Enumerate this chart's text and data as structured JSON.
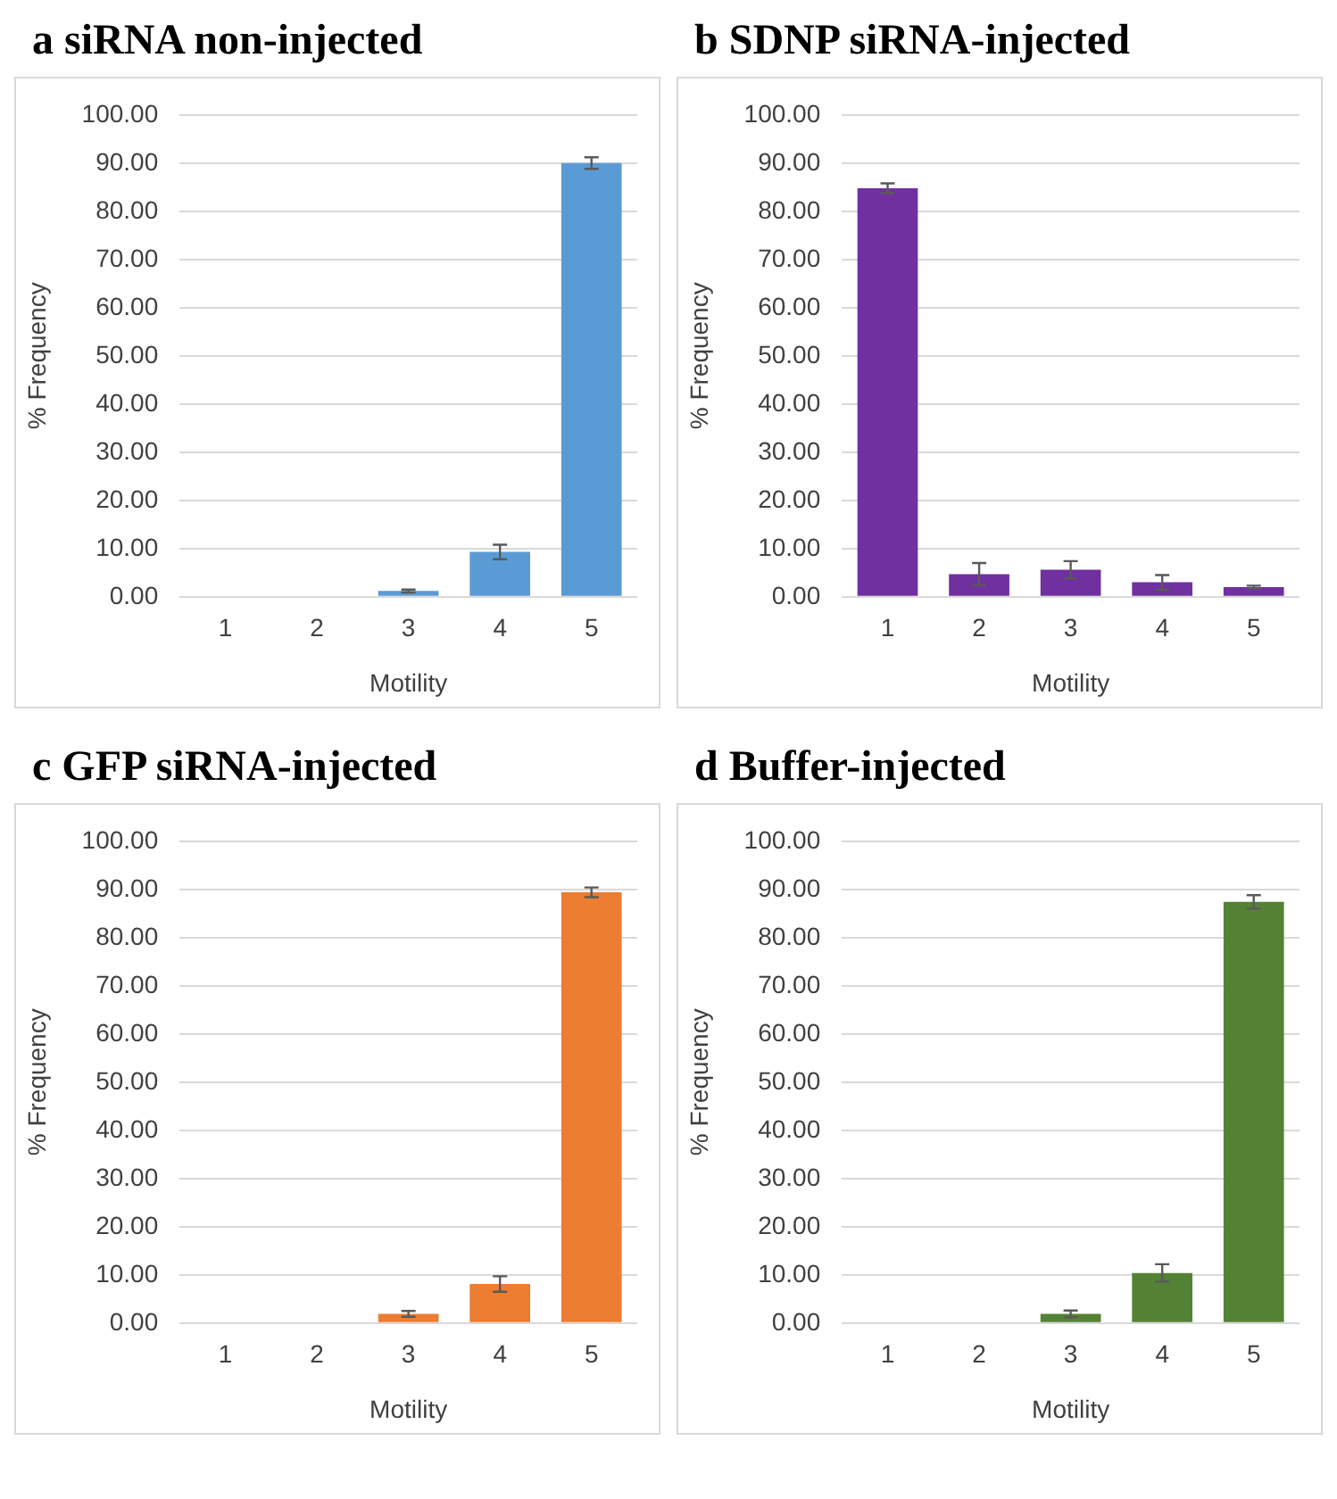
{
  "chart_data": [
    {
      "type": "bar",
      "title": "a siRNA non-injected",
      "xlabel": "Motility",
      "ylabel": "% Frequency",
      "categories": [
        "1",
        "2",
        "3",
        "4",
        "5"
      ],
      "values": [
        0,
        0,
        1.2,
        9.3,
        90.0
      ],
      "errors": [
        null,
        null,
        0.3,
        1.5,
        1.2
      ],
      "color": "#5b9bd5",
      "ylim": [
        0,
        100
      ],
      "yticks": [
        {
          "value": 0,
          "label": "0.00"
        },
        {
          "value": 10,
          "label": "10.00"
        },
        {
          "value": 20,
          "label": "20.00"
        },
        {
          "value": 30,
          "label": "30.00"
        },
        {
          "value": 40,
          "label": "40.00"
        },
        {
          "value": 50,
          "label": "50.00"
        },
        {
          "value": 60,
          "label": "60.00"
        },
        {
          "value": 70,
          "label": "70.00"
        },
        {
          "value": 80,
          "label": "80.00"
        },
        {
          "value": 90,
          "label": "90.00"
        },
        {
          "value": 100,
          "label": "100.00"
        }
      ],
      "grid": "y",
      "legend": false
    },
    {
      "type": "bar",
      "title": "b SDNP siRNA-injected",
      "xlabel": "Motility",
      "ylabel": "% Frequency",
      "categories": [
        "1",
        "2",
        "3",
        "4",
        "5"
      ],
      "values": [
        84.8,
        4.7,
        5.6,
        3.0,
        2.0
      ],
      "errors": [
        1.0,
        2.3,
        1.8,
        1.5,
        0.3
      ],
      "color": "#7030a0",
      "ylim": [
        0,
        100
      ],
      "yticks": [
        {
          "value": 0,
          "label": "0.00"
        },
        {
          "value": 10,
          "label": "10.00"
        },
        {
          "value": 20,
          "label": "20.00"
        },
        {
          "value": 30,
          "label": "30.00"
        },
        {
          "value": 40,
          "label": "40.00"
        },
        {
          "value": 50,
          "label": "50.00"
        },
        {
          "value": 60,
          "label": "60.00"
        },
        {
          "value": 70,
          "label": "70.00"
        },
        {
          "value": 80,
          "label": "80.00"
        },
        {
          "value": 90,
          "label": "90.00"
        },
        {
          "value": 100,
          "label": "100.00"
        }
      ],
      "grid": "y",
      "legend": false
    },
    {
      "type": "bar",
      "title": "c GFP siRNA-injected",
      "xlabel": "Motility",
      "ylabel": "% Frequency",
      "categories": [
        "1",
        "2",
        "3",
        "4",
        "5"
      ],
      "values": [
        0,
        0,
        1.9,
        8.1,
        89.4
      ],
      "errors": [
        null,
        null,
        0.6,
        1.6,
        1.0
      ],
      "color": "#ed7d31",
      "ylim": [
        0,
        100
      ],
      "yticks": [
        {
          "value": 0,
          "label": "0.00"
        },
        {
          "value": 10,
          "label": "10.00"
        },
        {
          "value": 20,
          "label": "20.00"
        },
        {
          "value": 30,
          "label": "30.00"
        },
        {
          "value": 40,
          "label": "40.00"
        },
        {
          "value": 50,
          "label": "50.00"
        },
        {
          "value": 60,
          "label": "60.00"
        },
        {
          "value": 70,
          "label": "70.00"
        },
        {
          "value": 80,
          "label": "80.00"
        },
        {
          "value": 90,
          "label": "90.00"
        },
        {
          "value": 100,
          "label": "100.00"
        }
      ],
      "grid": "y",
      "legend": false
    },
    {
      "type": "bar",
      "title": "d Buffer-injected",
      "xlabel": "Motility",
      "ylabel": "% Frequency",
      "categories": [
        "1",
        "2",
        "3",
        "4",
        "5"
      ],
      "values": [
        0,
        0,
        1.9,
        10.4,
        87.4
      ],
      "errors": [
        null,
        null,
        0.7,
        1.8,
        1.4
      ],
      "color": "#548235",
      "ylim": [
        0,
        100
      ],
      "yticks": [
        {
          "value": 0,
          "label": "0.00"
        },
        {
          "value": 10,
          "label": "10.00"
        },
        {
          "value": 20,
          "label": "20.00"
        },
        {
          "value": 30,
          "label": "30.00"
        },
        {
          "value": 40,
          "label": "40.00"
        },
        {
          "value": 50,
          "label": "50.00"
        },
        {
          "value": 60,
          "label": "60.00"
        },
        {
          "value": 70,
          "label": "70.00"
        },
        {
          "value": 80,
          "label": "80.00"
        },
        {
          "value": 90,
          "label": "90.00"
        },
        {
          "value": 100,
          "label": "100.00"
        }
      ],
      "grid": "y",
      "legend": false
    }
  ]
}
